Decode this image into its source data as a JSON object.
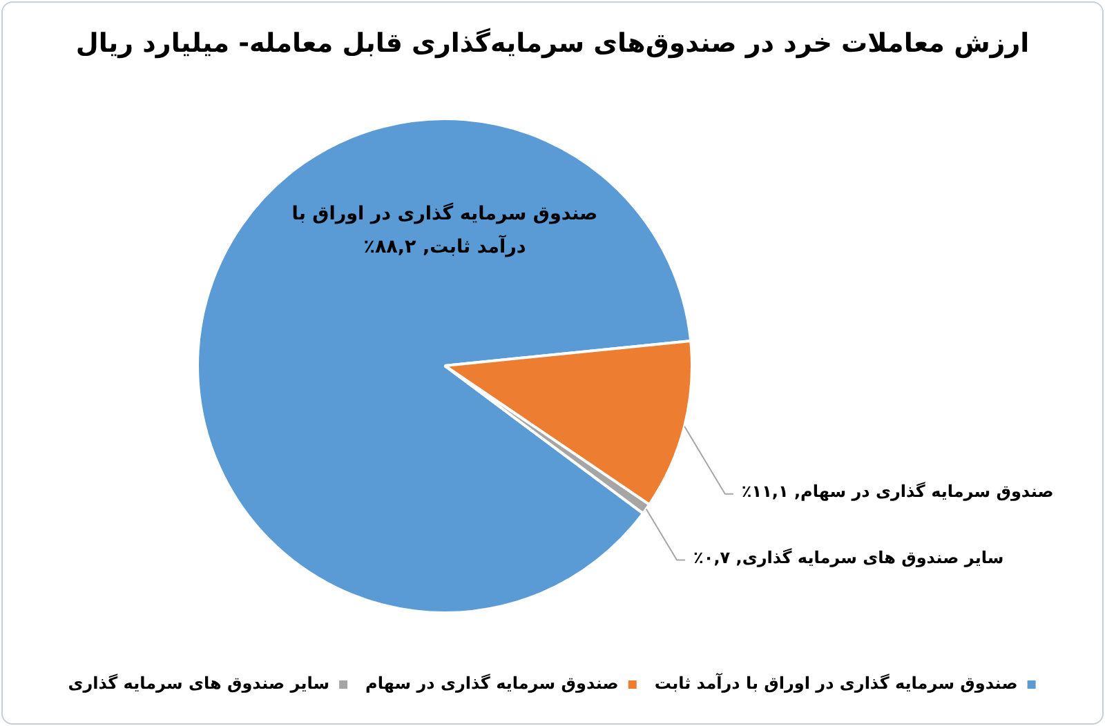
{
  "chart_data": {
    "type": "pie",
    "title": "ارزش معاملات خرد در صندوق‌های سرمایه‌گذاری قابل معامله- میلیارد ریال",
    "categories": [
      "صندوق سرمایه گذاری در اوراق با درآمد ثابت",
      "صندوق سرمایه گذاری در سهام",
      "سایر صندوق های سرمایه گذاری"
    ],
    "values": [
      88.2,
      11.1,
      0.7
    ],
    "colors": [
      "#5b9bd5",
      "#ed7d31",
      "#a5a5a5"
    ],
    "value_labels": [
      "صندوق سرمایه گذاری در اوراق با درآمد ثابت, ۸۸,۲٪",
      "صندوق سرمایه گذاری در سهام, ۱۱,۱٪",
      "سایر صندوق های سرمایه گذاری, ۰,۷٪"
    ],
    "legend": "bottom"
  }
}
